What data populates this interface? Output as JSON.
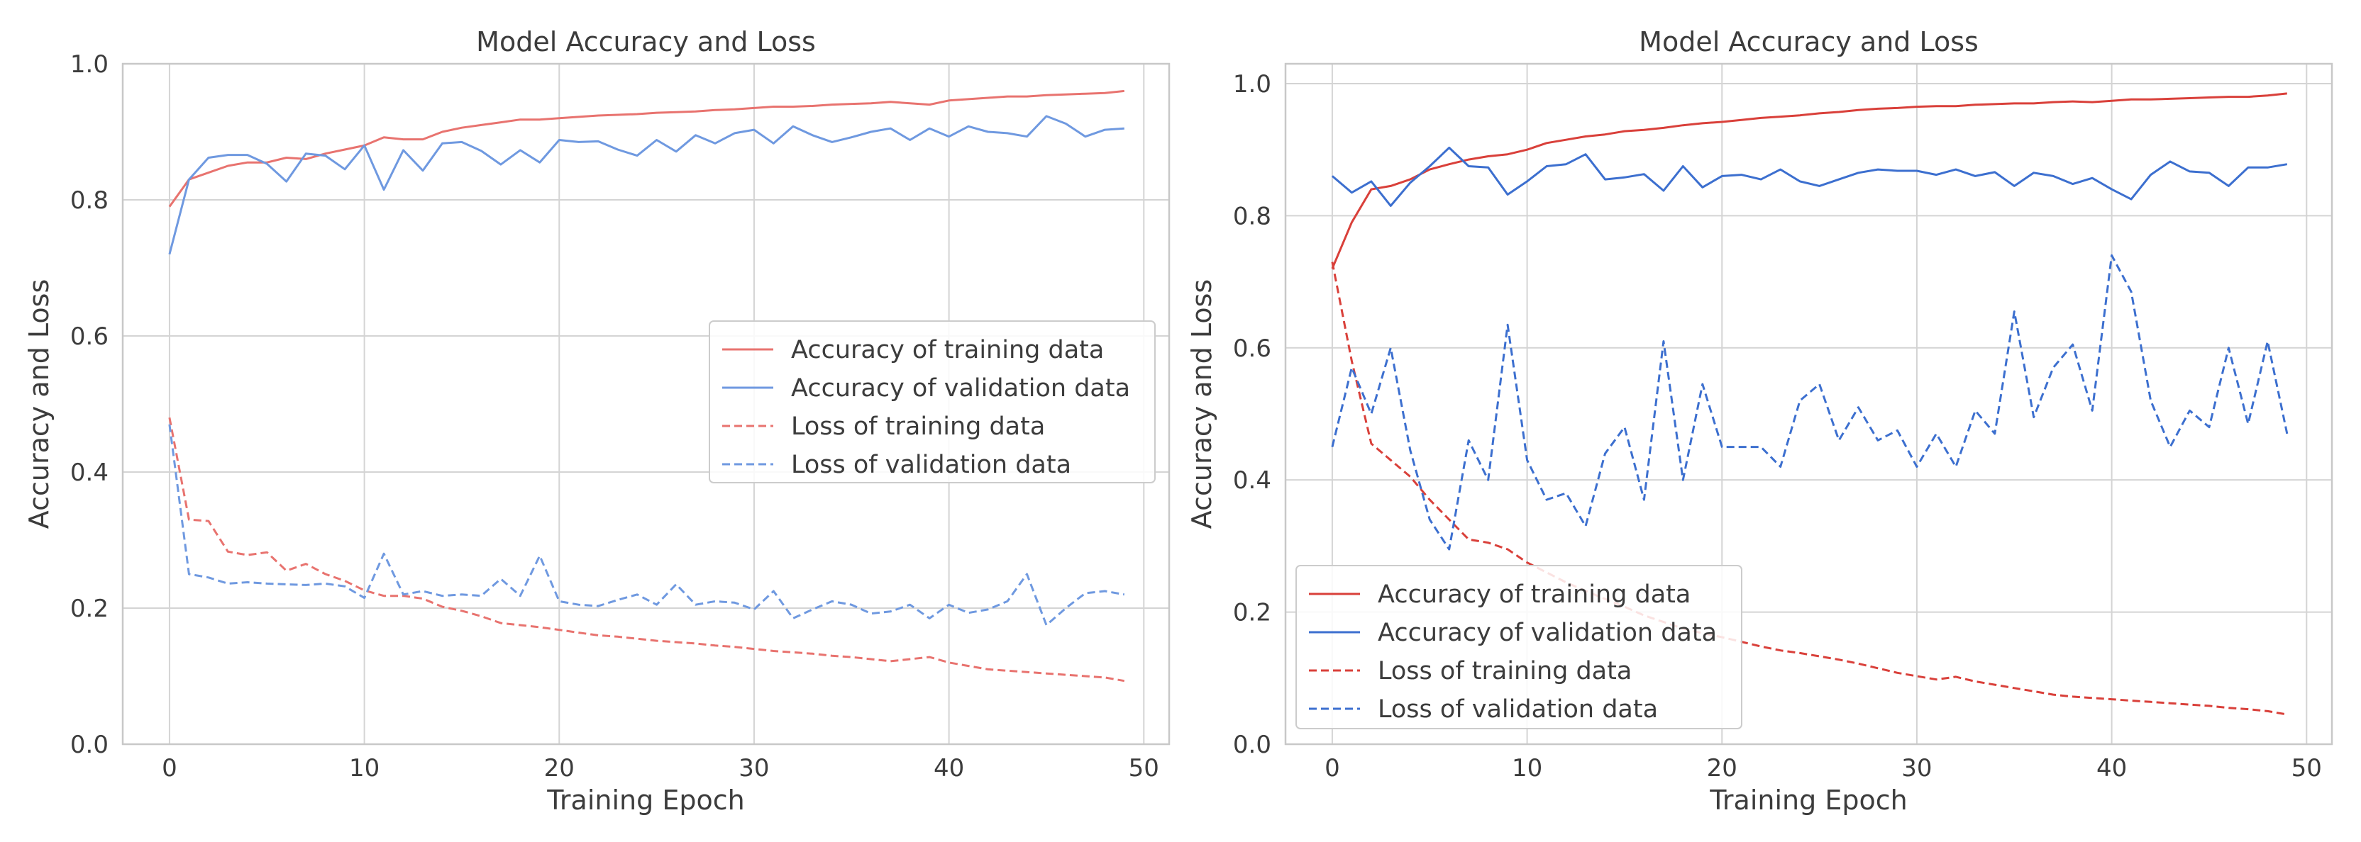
{
  "chart_data": [
    {
      "type": "line",
      "title": "Model Accuracy and Loss",
      "xlabel": "Training Epoch",
      "ylabel": "Accuracy and Loss",
      "xlim": [
        -2.4,
        51.3
      ],
      "ylim": [
        0.0,
        1.0
      ],
      "xticks": [
        "0",
        "10",
        "20",
        "30",
        "40",
        "50"
      ],
      "yticks": [
        "0.0",
        "0.2",
        "0.4",
        "0.6",
        "0.8",
        "1.0"
      ],
      "grid": true,
      "legend_position": "center-right",
      "series": [
        {
          "name": "Accuracy of training data",
          "color": "#e8736f",
          "style": "solid",
          "values": [
            0.79,
            0.83,
            0.84,
            0.85,
            0.855,
            0.855,
            0.862,
            0.86,
            0.868,
            0.874,
            0.88,
            0.892,
            0.889,
            0.889,
            0.9,
            0.906,
            0.91,
            0.914,
            0.918,
            0.918,
            0.92,
            0.922,
            0.924,
            0.925,
            0.926,
            0.928,
            0.929,
            0.93,
            0.932,
            0.933,
            0.935,
            0.937,
            0.937,
            0.938,
            0.94,
            0.941,
            0.942,
            0.944,
            0.942,
            0.94,
            0.946,
            0.948,
            0.95,
            0.952,
            0.952,
            0.954,
            0.955,
            0.956,
            0.957,
            0.96
          ]
        },
        {
          "name": "Accuracy of validation data",
          "color": "#6f99e0",
          "style": "solid",
          "values": [
            0.72,
            0.83,
            0.862,
            0.866,
            0.866,
            0.853,
            0.827,
            0.868,
            0.865,
            0.845,
            0.88,
            0.815,
            0.873,
            0.843,
            0.883,
            0.885,
            0.872,
            0.852,
            0.873,
            0.855,
            0.888,
            0.885,
            0.886,
            0.874,
            0.865,
            0.888,
            0.871,
            0.895,
            0.883,
            0.898,
            0.903,
            0.883,
            0.908,
            0.895,
            0.885,
            0.892,
            0.9,
            0.905,
            0.888,
            0.905,
            0.893,
            0.908,
            0.9,
            0.898,
            0.893,
            0.923,
            0.912,
            0.893,
            0.903,
            0.905
          ]
        },
        {
          "name": "Loss of training data",
          "color": "#e8736f",
          "style": "dashed",
          "values": [
            0.48,
            0.33,
            0.328,
            0.283,
            0.278,
            0.282,
            0.255,
            0.265,
            0.25,
            0.24,
            0.226,
            0.218,
            0.218,
            0.214,
            0.202,
            0.196,
            0.188,
            0.178,
            0.175,
            0.172,
            0.168,
            0.164,
            0.16,
            0.158,
            0.155,
            0.152,
            0.15,
            0.148,
            0.145,
            0.143,
            0.14,
            0.137,
            0.135,
            0.133,
            0.13,
            0.128,
            0.125,
            0.122,
            0.125,
            0.128,
            0.12,
            0.115,
            0.11,
            0.108,
            0.106,
            0.104,
            0.102,
            0.1,
            0.098,
            0.093
          ]
        },
        {
          "name": "Loss of validation data",
          "color": "#6f99e0",
          "style": "dashed",
          "values": [
            0.47,
            0.25,
            0.245,
            0.236,
            0.238,
            0.236,
            0.235,
            0.234,
            0.236,
            0.232,
            0.215,
            0.28,
            0.22,
            0.225,
            0.218,
            0.22,
            0.218,
            0.243,
            0.218,
            0.277,
            0.21,
            0.205,
            0.203,
            0.212,
            0.22,
            0.205,
            0.235,
            0.205,
            0.21,
            0.208,
            0.198,
            0.225,
            0.185,
            0.198,
            0.21,
            0.205,
            0.192,
            0.195,
            0.205,
            0.185,
            0.205,
            0.193,
            0.198,
            0.21,
            0.25,
            0.175,
            0.2,
            0.222,
            0.225,
            0.22
          ]
        }
      ]
    },
    {
      "type": "line",
      "title": "Model Accuracy and Loss",
      "xlabel": "Training Epoch",
      "ylabel": "Accuracy and Loss",
      "xlim": [
        -2.4,
        51.3
      ],
      "ylim": [
        0.0,
        1.03
      ],
      "xticks": [
        "0",
        "10",
        "20",
        "30",
        "40",
        "50"
      ],
      "yticks": [
        "0.0",
        "0.2",
        "0.4",
        "0.6",
        "0.8",
        "1.0"
      ],
      "grid": true,
      "legend_position": "lower-left",
      "series": [
        {
          "name": "Accuracy of training data",
          "color": "#d9403a",
          "style": "solid",
          "values": [
            0.72,
            0.79,
            0.84,
            0.845,
            0.855,
            0.87,
            0.878,
            0.885,
            0.89,
            0.893,
            0.9,
            0.91,
            0.915,
            0.92,
            0.923,
            0.928,
            0.93,
            0.933,
            0.937,
            0.94,
            0.942,
            0.945,
            0.948,
            0.95,
            0.952,
            0.955,
            0.957,
            0.96,
            0.962,
            0.963,
            0.965,
            0.966,
            0.966,
            0.968,
            0.969,
            0.97,
            0.97,
            0.972,
            0.973,
            0.972,
            0.974,
            0.976,
            0.976,
            0.977,
            0.978,
            0.979,
            0.98,
            0.98,
            0.982,
            0.985
          ]
        },
        {
          "name": "Accuracy of validation data",
          "color": "#3c6fcf",
          "style": "solid",
          "values": [
            0.86,
            0.835,
            0.852,
            0.815,
            0.85,
            0.875,
            0.903,
            0.875,
            0.873,
            0.832,
            0.852,
            0.875,
            0.878,
            0.893,
            0.855,
            0.858,
            0.863,
            0.838,
            0.875,
            0.843,
            0.86,
            0.862,
            0.855,
            0.87,
            0.852,
            0.845,
            0.855,
            0.865,
            0.87,
            0.868,
            0.868,
            0.862,
            0.87,
            0.86,
            0.866,
            0.845,
            0.865,
            0.86,
            0.848,
            0.857,
            0.84,
            0.825,
            0.862,
            0.882,
            0.867,
            0.865,
            0.845,
            0.873,
            0.873,
            0.878
          ]
        },
        {
          "name": "Loss of training data",
          "color": "#d9403a",
          "style": "dashed",
          "values": [
            0.73,
            0.58,
            0.455,
            0.43,
            0.405,
            0.37,
            0.34,
            0.31,
            0.305,
            0.295,
            0.275,
            0.26,
            0.245,
            0.232,
            0.22,
            0.208,
            0.195,
            0.185,
            0.175,
            0.168,
            0.162,
            0.155,
            0.148,
            0.142,
            0.138,
            0.133,
            0.128,
            0.122,
            0.115,
            0.108,
            0.103,
            0.098,
            0.102,
            0.095,
            0.09,
            0.085,
            0.08,
            0.075,
            0.072,
            0.07,
            0.068,
            0.066,
            0.064,
            0.062,
            0.06,
            0.058,
            0.055,
            0.053,
            0.05,
            0.045
          ]
        },
        {
          "name": "Loss of validation data",
          "color": "#3c6fcf",
          "style": "dashed",
          "values": [
            0.45,
            0.57,
            0.5,
            0.6,
            0.445,
            0.34,
            0.295,
            0.46,
            0.4,
            0.635,
            0.43,
            0.37,
            0.38,
            0.33,
            0.44,
            0.48,
            0.37,
            0.61,
            0.4,
            0.545,
            0.45,
            0.45,
            0.45,
            0.42,
            0.52,
            0.545,
            0.46,
            0.51,
            0.46,
            0.475,
            0.42,
            0.47,
            0.42,
            0.505,
            0.47,
            0.655,
            0.495,
            0.57,
            0.605,
            0.505,
            0.74,
            0.685,
            0.52,
            0.45,
            0.505,
            0.48,
            0.6,
            0.485,
            0.61,
            0.47
          ]
        }
      ]
    }
  ]
}
